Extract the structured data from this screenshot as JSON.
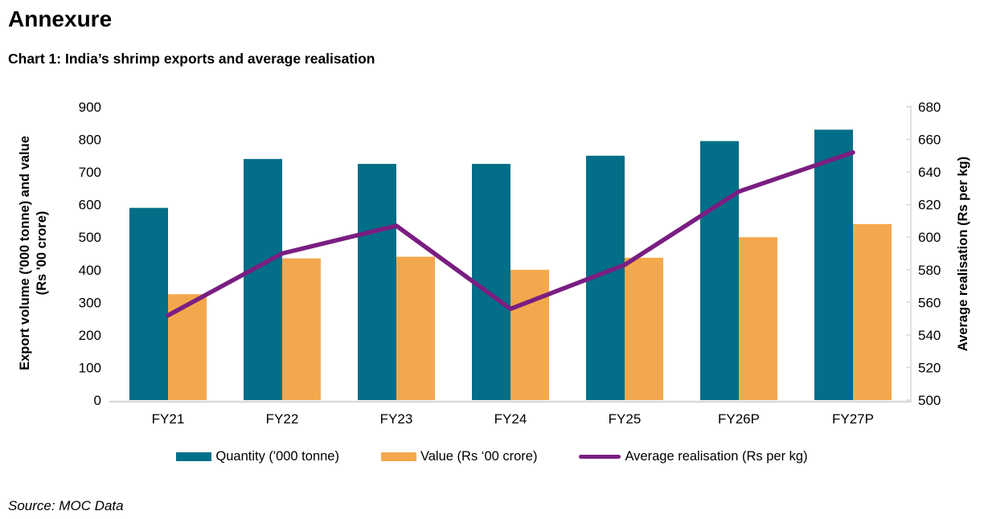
{
  "header": {
    "title": "Annexure"
  },
  "chart_data": {
    "type": "combo-bar-line",
    "title": "Chart 1: India’s shrimp exports and average realisation",
    "categories": [
      "FY21",
      "FY22",
      "FY23",
      "FY24",
      "FY25",
      "FY26P",
      "FY27P"
    ],
    "series": [
      {
        "name": "Quantity ('000 tonne)",
        "type": "bar",
        "axis": "left",
        "color": "#026E87",
        "values": [
          590,
          740,
          725,
          725,
          750,
          795,
          830
        ]
      },
      {
        "name": "Value (Rs ‘00 crore)",
        "type": "bar",
        "axis": "left",
        "color": "#F4A84D",
        "values": [
          325,
          435,
          440,
          400,
          437,
          500,
          540
        ]
      },
      {
        "name": "Average realisation (Rs per kg)",
        "type": "line",
        "axis": "right",
        "color": "#7A1E82",
        "values": [
          552,
          590,
          607,
          556,
          583,
          628,
          652
        ]
      }
    ],
    "left_axis": {
      "min": 0,
      "max": 900,
      "step": 100,
      "title_line1": "Export volume ('000 tonne) and value",
      "title_line2": "(Rs '00 crore)"
    },
    "right_axis": {
      "min": 500,
      "max": 680,
      "step": 20,
      "title": "Average realisation (Rs per kg)"
    },
    "grid": false,
    "legend_position": "bottom"
  },
  "colors": {
    "axis_line": "#D9D9D9",
    "text": "#000000"
  },
  "source": {
    "text": "Source: MOC Data"
  }
}
